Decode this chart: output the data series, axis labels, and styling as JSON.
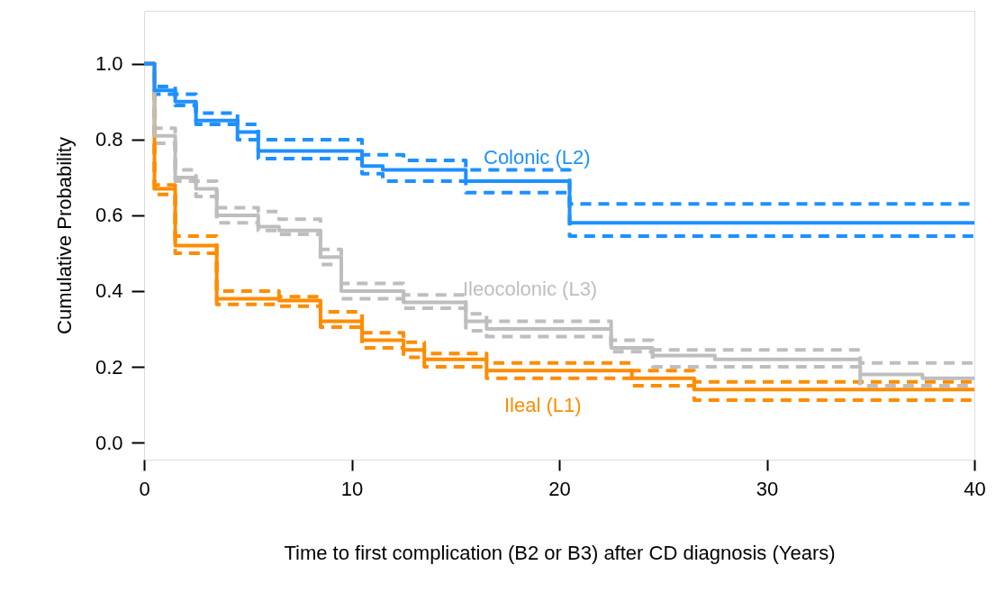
{
  "chart_data": {
    "type": "step",
    "xlabel": "Time to first complication (B2 or B3) after CD diagnosis (Years)",
    "ylabel": "Cumulative Probability",
    "xlim": [
      0,
      40
    ],
    "ylim": [
      -0.045,
      1.14
    ],
    "xticks": [
      0,
      10,
      20,
      30,
      40
    ],
    "yticks": [
      {
        "value": 0,
        "label": "0.0"
      },
      {
        "value": 0.2,
        "label": "0.2"
      },
      {
        "value": 0.4,
        "label": "0.4"
      },
      {
        "value": 0.6,
        "label": "0.6"
      },
      {
        "value": 0.8,
        "label": "0.8"
      },
      {
        "value": 1,
        "label": "1.0"
      }
    ],
    "grid": false,
    "legend": false,
    "series": [
      {
        "name": "Colonic (L2)",
        "color": "#1e90ff",
        "line_style": "solid",
        "x": [
          0,
          0.5,
          1.5,
          2.5,
          4.5,
          5.5,
          10.5,
          11.5,
          15.5,
          20.5,
          40
        ],
        "values": [
          1.0,
          0.93,
          0.9,
          0.85,
          0.82,
          0.77,
          0.73,
          0.72,
          0.69,
          0.58,
          0.58
        ]
      },
      {
        "name": "Ileocolonic (L3)",
        "color": "#bebebe",
        "line_style": "solid",
        "x": [
          0,
          0.5,
          1.5,
          2.5,
          3.5,
          5.5,
          6.5,
          8.5,
          9.5,
          12.5,
          15.5,
          16.5,
          22.5,
          24.5,
          27.5,
          34.5,
          37.5,
          40
        ],
        "values": [
          1.0,
          0.81,
          0.7,
          0.67,
          0.6,
          0.57,
          0.56,
          0.49,
          0.4,
          0.37,
          0.32,
          0.3,
          0.25,
          0.23,
          0.22,
          0.18,
          0.17,
          0.17
        ]
      },
      {
        "name": "Ileal (L1)",
        "color": "#ff8c00",
        "line_style": "solid",
        "x": [
          0,
          0.5,
          1.5,
          3.5,
          6.5,
          8.5,
          10.5,
          12.5,
          13.5,
          16.5,
          23.5,
          26.5,
          40
        ],
        "values": [
          1.0,
          0.67,
          0.52,
          0.38,
          0.375,
          0.32,
          0.27,
          0.245,
          0.22,
          0.19,
          0.17,
          0.14,
          0.14
        ]
      },
      {
        "type": "step",
        "color": "#1e90ff",
        "line_style": "dashed",
        "x": [
          0,
          0.5,
          1.5,
          2.5,
          4.5,
          5.5,
          10.5,
          12.5,
          15.5,
          20.5,
          40
        ],
        "values": [
          1.0,
          0.94,
          0.92,
          0.87,
          0.84,
          0.8,
          0.76,
          0.745,
          0.72,
          0.63,
          0.63
        ]
      },
      {
        "type": "step",
        "color": "#1e90ff",
        "line_style": "dashed",
        "x": [
          0,
          0.5,
          1.5,
          2.5,
          4.5,
          5.5,
          10.5,
          11.5,
          15.5,
          20.5,
          40
        ],
        "values": [
          1.0,
          0.92,
          0.89,
          0.84,
          0.8,
          0.75,
          0.71,
          0.69,
          0.66,
          0.545,
          0.545
        ]
      },
      {
        "type": "step",
        "color": "#bebebe",
        "line_style": "dashed",
        "x": [
          0,
          0.5,
          1.5,
          2.5,
          3.5,
          5.5,
          6.5,
          8.5,
          9.5,
          12.5,
          15.5,
          16.5,
          22.5,
          24.5,
          34.5,
          40
        ],
        "values": [
          1.0,
          0.83,
          0.72,
          0.69,
          0.62,
          0.61,
          0.59,
          0.51,
          0.42,
          0.39,
          0.34,
          0.32,
          0.27,
          0.245,
          0.21,
          0.21
        ]
      },
      {
        "type": "step",
        "color": "#bebebe",
        "line_style": "dashed",
        "x": [
          0,
          0.5,
          1.5,
          2.5,
          3.5,
          5.5,
          6.5,
          8.5,
          9.5,
          12.5,
          15.5,
          16.5,
          22.5,
          24.5,
          34.5,
          40
        ],
        "values": [
          1.0,
          0.79,
          0.69,
          0.65,
          0.58,
          0.56,
          0.55,
          0.47,
          0.38,
          0.355,
          0.295,
          0.28,
          0.24,
          0.2,
          0.15,
          0.15
        ]
      },
      {
        "type": "step",
        "color": "#ff8c00",
        "line_style": "dashed",
        "x": [
          0,
          0.5,
          1.5,
          3.5,
          6.5,
          8.5,
          10.5,
          12.5,
          13.5,
          16.5,
          23.5,
          26.5,
          40
        ],
        "values": [
          1.0,
          0.68,
          0.545,
          0.4,
          0.385,
          0.345,
          0.29,
          0.265,
          0.235,
          0.21,
          0.19,
          0.16,
          0.16
        ]
      },
      {
        "type": "step",
        "color": "#ff8c00",
        "line_style": "dashed",
        "x": [
          0,
          0.5,
          1.5,
          3.5,
          6.5,
          8.5,
          10.5,
          12.5,
          13.5,
          16.5,
          23.5,
          26.5,
          40
        ],
        "values": [
          1.0,
          0.655,
          0.5,
          0.365,
          0.36,
          0.305,
          0.25,
          0.225,
          0.2,
          0.17,
          0.15,
          0.112,
          0.112
        ]
      }
    ]
  }
}
